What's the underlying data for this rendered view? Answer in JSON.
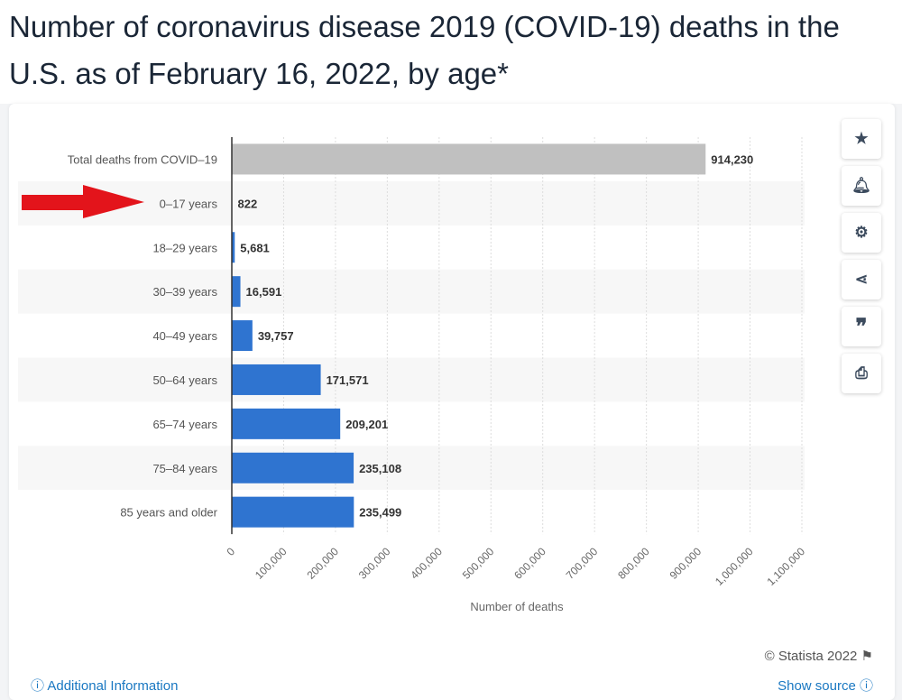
{
  "title": "Number of coronavirus disease 2019 (COVID-19) deaths in the U.S. as of February 16, 2022,  by age*",
  "chart_data": {
    "type": "bar",
    "orientation": "horizontal",
    "categories": [
      "Total deaths from COVID-19",
      "0-17 years",
      "18-29 years",
      "30-39 years",
      "40-49 years",
      "50-64 years",
      "65-74 years",
      "75-84 years",
      "85 years and older"
    ],
    "values": [
      914230,
      822,
      5681,
      16591,
      39757,
      171571,
      209201,
      235108,
      235499
    ],
    "value_labels": [
      "914,230",
      "822",
      "5,681",
      "16,591",
      "39,757",
      "171,571",
      "209,201",
      "235,108",
      "235,499"
    ],
    "colors": [
      "#c0c0c0",
      "#2f74d0",
      "#2f74d0",
      "#2f74d0",
      "#2f74d0",
      "#2f74d0",
      "#2f74d0",
      "#2f74d0",
      "#2f74d0"
    ],
    "xlabel": "Number of deaths",
    "xlim": [
      0,
      1100000
    ],
    "xticks": [
      "0",
      "100,000",
      "200,000",
      "300,000",
      "400,000",
      "500,000",
      "600,000",
      "700,000",
      "800,000",
      "900,000",
      "1,000,000",
      "1,100,000"
    ],
    "grid": true,
    "annotation": "red arrow pointing at 0-17 years"
  },
  "sidebar": [
    "star-icon",
    "bell-icon",
    "gear-icon",
    "share-icon",
    "quote-icon",
    "print-icon"
  ],
  "footer": {
    "copyright": "© Statista 2022",
    "additional": "Additional Information",
    "source": "Show source"
  }
}
